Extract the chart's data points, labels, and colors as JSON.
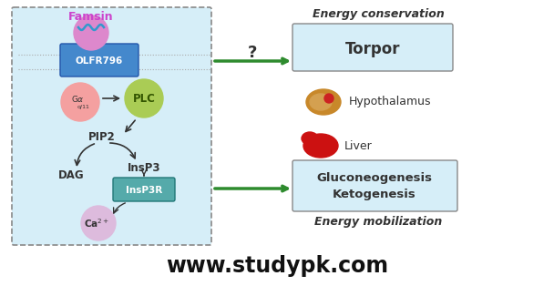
{
  "title": "www.studypk.com",
  "bg_color": "#ffffff",
  "left_box_bg": "#d6eef8",
  "torpor_box_bg": "#d6eef8",
  "gluco_box_bg": "#d6eef8",
  "arrow_color": "#2e8b2e",
  "famsin_color": "#cc44cc",
  "energy_conservation_text": "Energy conservation",
  "energy_mobilization_text": "Energy mobilization",
  "torpor_text": "Torpor",
  "hypothalamus_text": "Hypothalamus",
  "liver_text": "Liver",
  "gluco_text": "Gluconeogenesis\nKetogenesis",
  "famsin_text": "Famsin",
  "olfr_text": "OLFR796",
  "plc_text": "PLC",
  "pip2_text": "PIP2",
  "dag_text": "DAG",
  "insp3_text": "InsP3",
  "insp3r_text": "InsP3R",
  "question_mark": "?"
}
